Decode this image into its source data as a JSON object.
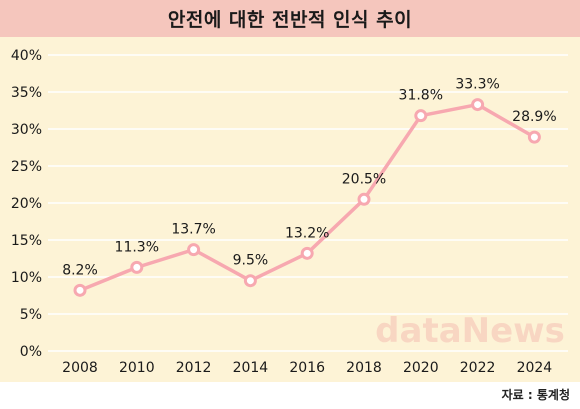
{
  "chart_data": {
    "type": "line",
    "title": "안전에 대한 전반적 인식 추이",
    "categories": [
      "2008",
      "2010",
      "2012",
      "2014",
      "2016",
      "2018",
      "2020",
      "2022",
      "2024"
    ],
    "series": [
      {
        "values": [
          8.2,
          11.3,
          13.7,
          9.5,
          13.2,
          20.5,
          31.8,
          33.3,
          28.9
        ],
        "labels": [
          "8.2%",
          "11.3%",
          "13.7%",
          "9.5%",
          "13.2%",
          "20.5%",
          "31.8%",
          "33.3%",
          "28.9%"
        ]
      }
    ],
    "xlabel": "",
    "ylabel": "",
    "ylim": [
      0,
      40
    ],
    "yticks": [
      "0%",
      "5%",
      "10%",
      "15%",
      "20%",
      "25%",
      "30%",
      "35%",
      "40%"
    ],
    "grid": true,
    "legend": "none"
  },
  "colors": {
    "line": "#f7a8b0",
    "marker_fill": "#ffffff",
    "grid": "#ffffff",
    "title_bg": "#f5c6bd",
    "plot_bg": "#fdf3d6",
    "watermark": "#f4bfb3"
  },
  "watermark_text": "dataNews",
  "source": "자료 : 통계청"
}
